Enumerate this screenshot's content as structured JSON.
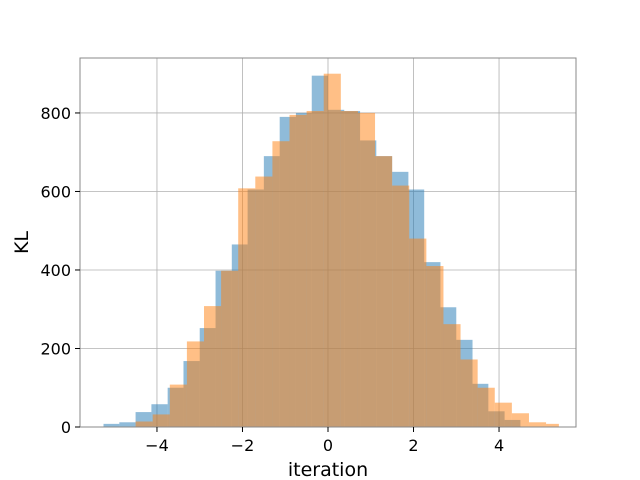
{
  "chart_data": {
    "type": "bar",
    "title": "",
    "xlabel": "iteration",
    "ylabel": "KL",
    "xlim": [
      -5.8,
      5.8
    ],
    "ylim": [
      0,
      940
    ],
    "xticks": [
      -4,
      -2,
      0,
      2,
      4
    ],
    "xtick_labels": [
      "−4",
      "−2",
      "0",
      "2",
      "4"
    ],
    "yticks": [
      0,
      200,
      400,
      600,
      800
    ],
    "ytick_labels": [
      "0",
      "200",
      "400",
      "600",
      "800"
    ],
    "grid": true,
    "colors": [
      "#1f77b4",
      "#ff7f0e"
    ],
    "series": [
      {
        "bins": [
          [
            -5.25,
            -4.88,
            8
          ],
          [
            -4.88,
            -4.5,
            12
          ],
          [
            -4.5,
            -4.13,
            38
          ],
          [
            -4.13,
            -3.75,
            58
          ],
          [
            -3.75,
            -3.38,
            100
          ],
          [
            -3.38,
            -3.0,
            168
          ],
          [
            -3.0,
            -2.63,
            252
          ],
          [
            -2.63,
            -2.25,
            398
          ],
          [
            -2.25,
            -1.88,
            465
          ],
          [
            -1.88,
            -1.5,
            605
          ],
          [
            -1.5,
            -1.13,
            690
          ],
          [
            -1.13,
            -0.75,
            790
          ],
          [
            -0.75,
            -0.38,
            800
          ],
          [
            -0.38,
            0.0,
            895
          ],
          [
            0.0,
            0.38,
            808
          ],
          [
            0.38,
            0.75,
            805
          ],
          [
            0.75,
            1.13,
            730
          ],
          [
            1.13,
            1.5,
            690
          ],
          [
            1.5,
            1.88,
            650
          ],
          [
            1.88,
            2.25,
            605
          ],
          [
            2.25,
            2.63,
            420
          ],
          [
            2.63,
            3.0,
            305
          ],
          [
            3.0,
            3.38,
            222
          ],
          [
            3.38,
            3.75,
            110
          ],
          [
            3.75,
            4.13,
            40
          ],
          [
            4.13,
            4.5,
            18
          ]
        ]
      },
      {
        "bins": [
          [
            -4.5,
            -4.1,
            14
          ],
          [
            -4.1,
            -3.7,
            32
          ],
          [
            -3.7,
            -3.3,
            108
          ],
          [
            -3.3,
            -2.9,
            218
          ],
          [
            -2.9,
            -2.5,
            308
          ],
          [
            -2.5,
            -2.1,
            398
          ],
          [
            -2.1,
            -1.7,
            608
          ],
          [
            -1.7,
            -1.3,
            638
          ],
          [
            -1.3,
            -0.9,
            728
          ],
          [
            -0.9,
            -0.5,
            795
          ],
          [
            -0.5,
            -0.1,
            805
          ],
          [
            -0.1,
            0.3,
            900
          ],
          [
            0.3,
            0.7,
            805
          ],
          [
            0.7,
            1.1,
            800
          ],
          [
            1.1,
            1.5,
            690
          ],
          [
            1.5,
            1.9,
            615
          ],
          [
            1.9,
            2.3,
            480
          ],
          [
            2.3,
            2.7,
            410
          ],
          [
            2.7,
            3.1,
            262
          ],
          [
            3.1,
            3.5,
            172
          ],
          [
            3.5,
            3.9,
            100
          ],
          [
            3.9,
            4.3,
            62
          ],
          [
            4.3,
            4.7,
            35
          ],
          [
            4.7,
            5.1,
            12
          ],
          [
            5.1,
            5.4,
            8
          ]
        ]
      }
    ]
  }
}
